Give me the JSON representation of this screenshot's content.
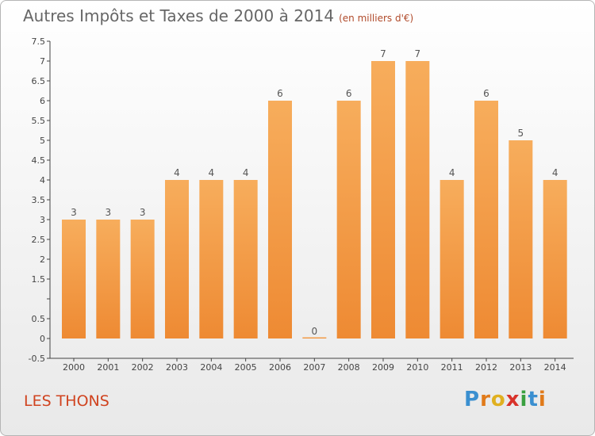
{
  "header": {
    "title": "Autres Impôts et Taxes de 2000 à 2014",
    "subtitle": "(en milliers d'€)"
  },
  "footer": {
    "commune": "LES THONS",
    "logo_letters": [
      "P",
      "r",
      "o",
      "x",
      "i",
      "t",
      "i"
    ],
    "logo_colors": [
      "#3a8fd0",
      "#e07a1a",
      "#e0b020",
      "#d8322a",
      "#3aa040",
      "#3a8fd0",
      "#e07a1a"
    ]
  },
  "chart_data": {
    "type": "bar",
    "categories": [
      "2000",
      "2001",
      "2002",
      "2003",
      "2004",
      "2005",
      "2006",
      "2007",
      "2008",
      "2009",
      "2010",
      "2011",
      "2012",
      "2013",
      "2014"
    ],
    "values": [
      3,
      3,
      3,
      4,
      4,
      4,
      6,
      0,
      6,
      7,
      7,
      4,
      6,
      5,
      4
    ],
    "data_labels": [
      "3",
      "3",
      "3",
      "4",
      "4",
      "4",
      "6",
      "0",
      "6",
      "7",
      "7",
      "4",
      "6",
      "5",
      "4"
    ],
    "yticks": [
      -0.5,
      0,
      0.5,
      1,
      1.5,
      2,
      2.5,
      3,
      3.5,
      4,
      4.5,
      5,
      5.5,
      6,
      6.5,
      7,
      7.5
    ],
    "ytick_labels": [
      "-0.5",
      "0",
      "0.5",
      "",
      "1.5",
      "2",
      "2.5",
      "3",
      "3.5",
      "4",
      "4.5",
      "5",
      "5.5",
      "6",
      "6.5",
      "7",
      "7.5"
    ],
    "ylim": [
      -0.5,
      7.5
    ],
    "xlabel": "",
    "ylabel": "",
    "grid": false,
    "bar_color": "#ee8a33",
    "bar_color_light": "#f7ad5c"
  }
}
